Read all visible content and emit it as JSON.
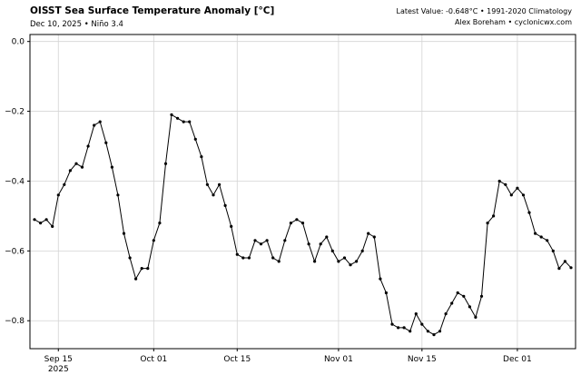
{
  "header": {
    "title": "OISST Sea Surface Temperature Anomaly [°C]",
    "subtitle": "Dec 10, 2025 • Niño 3.4",
    "latest_value": "Latest Value: -0.648°C • 1991-2020 Climatology",
    "credit": "Alex Boreham • cyclonicwx.com"
  },
  "chart_data": {
    "type": "line",
    "title": "OISST Sea Surface Temperature Anomaly [°C]",
    "xlabel": "",
    "ylabel": "",
    "ylim": [
      -0.88,
      0.02
    ],
    "grid": true,
    "grid_color": "#d4d4d4",
    "line_color": "#000000",
    "marker": "circle",
    "legend": "none",
    "x": [
      "2025-09-11",
      "2025-09-12",
      "2025-09-13",
      "2025-09-14",
      "2025-09-15",
      "2025-09-16",
      "2025-09-17",
      "2025-09-18",
      "2025-09-19",
      "2025-09-20",
      "2025-09-21",
      "2025-09-22",
      "2025-09-23",
      "2025-09-24",
      "2025-09-25",
      "2025-09-26",
      "2025-09-27",
      "2025-09-28",
      "2025-09-29",
      "2025-09-30",
      "2025-10-01",
      "2025-10-02",
      "2025-10-03",
      "2025-10-04",
      "2025-10-05",
      "2025-10-06",
      "2025-10-07",
      "2025-10-08",
      "2025-10-09",
      "2025-10-10",
      "2025-10-11",
      "2025-10-12",
      "2025-10-13",
      "2025-10-14",
      "2025-10-15",
      "2025-10-16",
      "2025-10-17",
      "2025-10-18",
      "2025-10-19",
      "2025-10-20",
      "2025-10-21",
      "2025-10-22",
      "2025-10-23",
      "2025-10-24",
      "2025-10-25",
      "2025-10-26",
      "2025-10-27",
      "2025-10-28",
      "2025-10-29",
      "2025-10-30",
      "2025-10-31",
      "2025-11-01",
      "2025-11-02",
      "2025-11-03",
      "2025-11-04",
      "2025-11-05",
      "2025-11-06",
      "2025-11-07",
      "2025-11-08",
      "2025-11-09",
      "2025-11-10",
      "2025-11-11",
      "2025-11-12",
      "2025-11-13",
      "2025-11-14",
      "2025-11-15",
      "2025-11-16",
      "2025-11-17",
      "2025-11-18",
      "2025-11-19",
      "2025-11-20",
      "2025-11-21",
      "2025-11-22",
      "2025-11-23",
      "2025-11-24",
      "2025-11-25",
      "2025-11-26",
      "2025-11-27",
      "2025-11-28",
      "2025-11-29",
      "2025-11-30",
      "2025-12-01",
      "2025-12-02",
      "2025-12-03",
      "2025-12-04",
      "2025-12-05",
      "2025-12-06",
      "2025-12-07",
      "2025-12-08",
      "2025-12-09",
      "2025-12-10"
    ],
    "values": [
      -0.51,
      -0.52,
      -0.51,
      -0.53,
      -0.44,
      -0.41,
      -0.37,
      -0.35,
      -0.36,
      -0.3,
      -0.24,
      -0.23,
      -0.29,
      -0.36,
      -0.44,
      -0.55,
      -0.62,
      -0.68,
      -0.65,
      -0.65,
      -0.57,
      -0.52,
      -0.35,
      -0.21,
      -0.22,
      -0.23,
      -0.23,
      -0.28,
      -0.33,
      -0.41,
      -0.44,
      -0.41,
      -0.47,
      -0.53,
      -0.61,
      -0.62,
      -0.62,
      -0.57,
      -0.58,
      -0.57,
      -0.62,
      -0.63,
      -0.57,
      -0.52,
      -0.51,
      -0.52,
      -0.58,
      -0.63,
      -0.58,
      -0.56,
      -0.6,
      -0.63,
      -0.62,
      -0.64,
      -0.63,
      -0.6,
      -0.55,
      -0.56,
      -0.68,
      -0.72,
      -0.81,
      -0.82,
      -0.82,
      -0.83,
      -0.78,
      -0.81,
      -0.83,
      -0.84,
      -0.83,
      -0.78,
      -0.75,
      -0.72,
      -0.73,
      -0.76,
      -0.79,
      -0.73,
      -0.52,
      -0.5,
      -0.4,
      -0.41,
      -0.44,
      -0.42,
      -0.44,
      -0.49,
      -0.55,
      -0.56,
      -0.57,
      -0.6,
      -0.65,
      -0.63,
      -0.648
    ],
    "x_ticks": [
      {
        "label": "Sep 15",
        "sub": "2025",
        "index": 4
      },
      {
        "label": "Oct 01",
        "index": 20
      },
      {
        "label": "Oct 15",
        "index": 34
      },
      {
        "label": "Nov 01",
        "index": 51
      },
      {
        "label": "Nov 15",
        "index": 65
      },
      {
        "label": "Dec 01",
        "index": 81
      }
    ],
    "y_ticks": [
      0.0,
      -0.2,
      -0.4,
      -0.6,
      -0.8
    ]
  }
}
